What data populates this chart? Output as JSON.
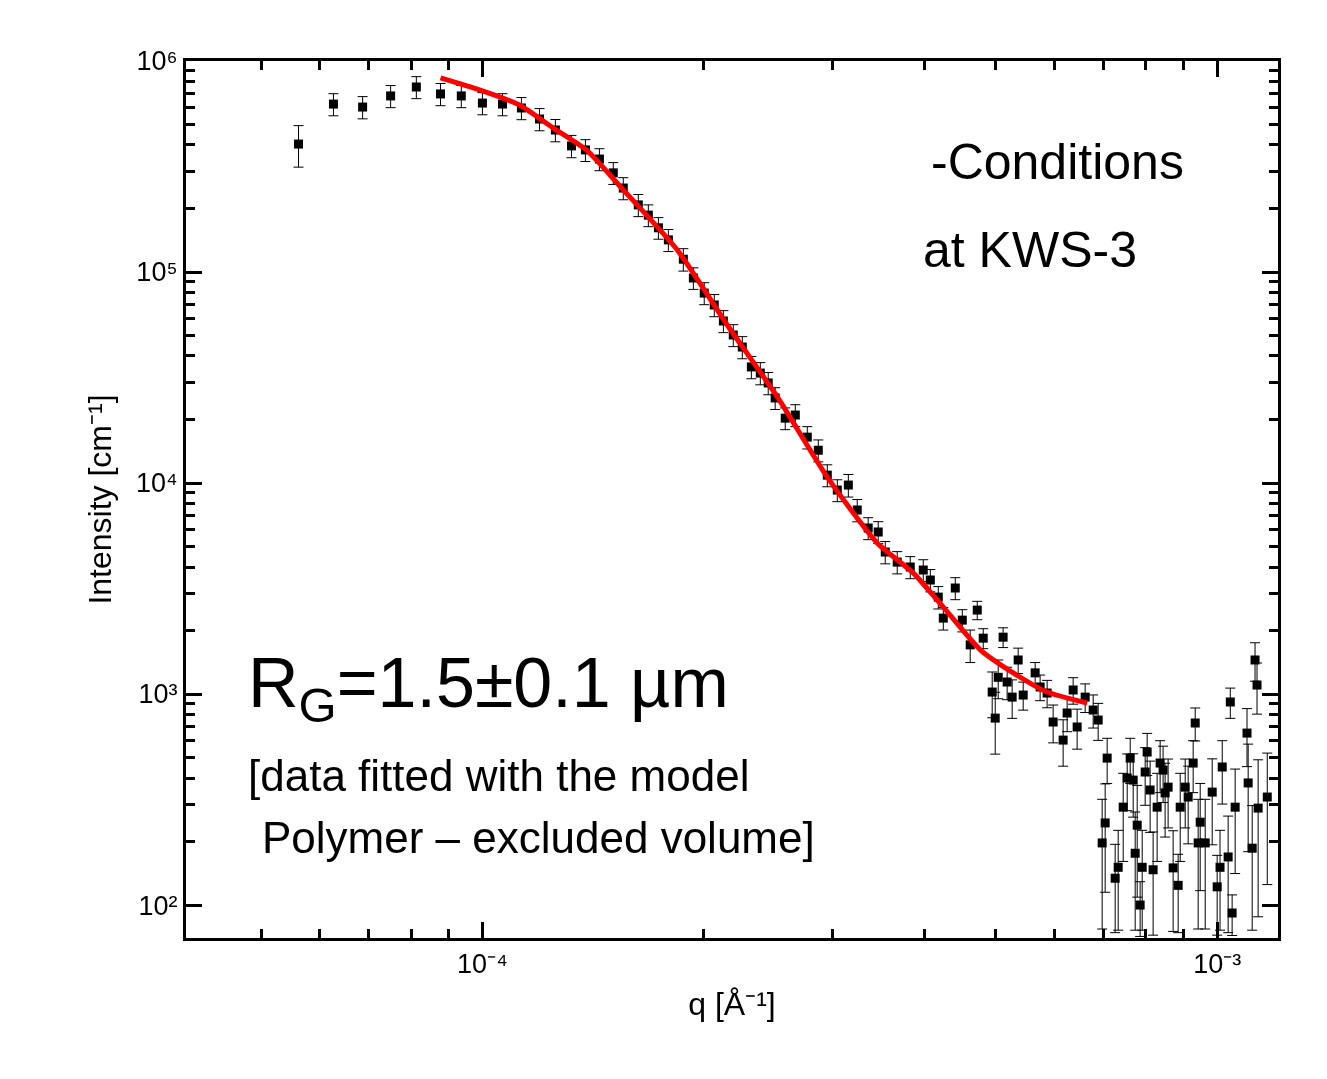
{
  "chart_data": {
    "type": "scatter",
    "xlabel": "q [Å⁻¹]",
    "ylabel": "Intensity [cm⁻¹]",
    "log": "xy",
    "marker": "square",
    "xlim": [
      3.95e-05,
      0.00121
    ],
    "ylim": [
      69.8,
      1000000
    ],
    "xticks": [
      {
        "value": 5e-05,
        "label": null
      },
      {
        "value": 6e-05,
        "label": null
      },
      {
        "value": 7e-05,
        "label": null
      },
      {
        "value": 8e-05,
        "label": null
      },
      {
        "value": 9e-05,
        "label": null
      },
      {
        "value": 0.0001,
        "label": "10⁻⁴"
      },
      {
        "value": 0.0002,
        "label": null
      },
      {
        "value": 0.0003,
        "label": null
      },
      {
        "value": 0.0004,
        "label": null
      },
      {
        "value": 0.0005,
        "label": null
      },
      {
        "value": 0.0006,
        "label": null
      },
      {
        "value": 0.0007,
        "label": null
      },
      {
        "value": 0.0008,
        "label": null
      },
      {
        "value": 0.0009,
        "label": null
      },
      {
        "value": 0.001,
        "label": "10⁻³"
      }
    ],
    "yticks": [
      {
        "value": 100,
        "label": "10²"
      },
      {
        "value": 200,
        "label": null
      },
      {
        "value": 300,
        "label": null
      },
      {
        "value": 400,
        "label": null
      },
      {
        "value": 500,
        "label": null
      },
      {
        "value": 600,
        "label": null
      },
      {
        "value": 700,
        "label": null
      },
      {
        "value": 800,
        "label": null
      },
      {
        "value": 900,
        "label": null
      },
      {
        "value": 1000,
        "label": "10³"
      },
      {
        "value": 2000,
        "label": null
      },
      {
        "value": 3000,
        "label": null
      },
      {
        "value": 4000,
        "label": null
      },
      {
        "value": 5000,
        "label": null
      },
      {
        "value": 6000,
        "label": null
      },
      {
        "value": 7000,
        "label": null
      },
      {
        "value": 8000,
        "label": null
      },
      {
        "value": 9000,
        "label": null
      },
      {
        "value": 10000,
        "label": "10⁴"
      },
      {
        "value": 20000,
        "label": null
      },
      {
        "value": 30000,
        "label": null
      },
      {
        "value": 40000,
        "label": null
      },
      {
        "value": 50000,
        "label": null
      },
      {
        "value": 60000,
        "label": null
      },
      {
        "value": 70000,
        "label": null
      },
      {
        "value": 80000,
        "label": null
      },
      {
        "value": 90000,
        "label": null
      },
      {
        "value": 100000,
        "label": "10⁵"
      },
      {
        "value": 200000,
        "label": null
      },
      {
        "value": 300000,
        "label": null
      },
      {
        "value": 400000,
        "label": null
      },
      {
        "value": 500000,
        "label": null
      },
      {
        "value": 600000,
        "label": null
      },
      {
        "value": 700000,
        "label": null
      },
      {
        "value": 800000,
        "label": null
      },
      {
        "value": 900000,
        "label": null
      },
      {
        "value": 1000000,
        "label": "10⁶"
      }
    ],
    "annotations": [
      "-Conditions",
      "at KWS-3",
      "R$_{G}$=1.5±0.1 µm",
      "[data fitted with the model",
      "Polymer – excluded volume]"
    ],
    "series": [
      {
        "color": "#000000",
        "x": [
          5.62e-05,
          6.27e-05,
          6.87e-05,
          7.5e-05,
          8.13e-05,
          8.77e-05,
          9.36e-05,
          0.0001,
          0.0001065,
          0.000113,
          0.0001196,
          0.0001257,
          0.0001322,
          0.0001381,
          0.0001443,
          0.0001507,
          0.0001555,
          0.000163,
          0.0001682,
          0.0001736,
          0.0001791,
          0.0001877,
          0.0001937,
          0.0002004,
          0.0002068,
          0.0002128,
          0.0002195,
          0.0002258,
          0.0002323,
          0.0002389,
          0.0002449,
          0.0002503,
          0.0002583,
          0.0002666,
          0.0002768,
          0.0002865,
          0.0002947,
          0.0003041,
          0.0003148,
          0.0003237,
          0.000335,
          0.0003457,
          0.0003534,
          0.0003669,
          0.0003822,
          0.0003981,
          0.000407,
          0.0004173,
          0.0004239,
          0.0004401,
          0.0004499,
          0.0004715,
          0.0004612,
          0.0004804,
          0.0005113,
          0.0005035,
          0.0004941,
          0.0004988,
          0.0005178,
          0.000526,
          0.000536,
          0.0005445,
          0.0005653,
          0.0005742,
          0.0005869,
          0.0005981,
          0.0006171,
          0.0006249,
          0.0006368,
          0.0006448,
          0.0006612,
          0.000678,
          0.0006887,
          0.0007084,
          0.0006974,
          0.000704,
          0.0007264,
          0.0007333,
          0.0007449,
          0.0007543,
          0.0007614,
          0.0007686,
          0.0007734,
          0.0007783,
          0.0007855,
          0.0007906,
          0.000803,
          0.000798,
          0.0008105,
          0.0008181,
          0.0008285,
          0.0008363,
          0.0008441,
          0.0008495,
          0.0008575,
          0.0008711,
          0.0008849,
          0.0008906,
          0.0009047,
          0.0009131,
          0.0009275,
          0.0009335,
          0.0009422,
          0.0009482,
          0.0009632,
          0.0009845,
          0.001,
          0.001009,
          0.001016,
          0.001035,
          0.001042,
          0.001048,
          0.001058,
          0.001098,
          0.001102,
          0.001116,
          0.001126,
          0.001133,
          0.001137,
          0.00117
        ],
        "values": [
          404000,
          625000,
          605000,
          683000,
          753000,
          698000,
          683000,
          632000,
          625000,
          599000,
          531000,
          471000,
          396000,
          379000,
          343000,
          295000,
          250000,
          208000,
          186000,
          162000,
          142000,
          115000,
          93700,
          79500,
          69800,
          58600,
          50300,
          44100,
          35500,
          33200,
          29800,
          25300,
          20300,
          21000,
          16500,
          14300,
          10900,
          9260,
          9780,
          7450,
          6120,
          5860,
          4710,
          4220,
          4000,
          3870,
          3470,
          2880,
          2290,
          3180,
          2240,
          2500,
          1710,
          1840,
          1860,
          1200,
          1022,
          769,
          1140,
          967,
          1450,
          989,
          1260,
          1080,
          1011,
          737,
          605,
          813,
          1045,
          698,
          967,
          840,
          753,
          497,
          197,
          245,
          134,
          151,
          291,
          400,
          497,
          391,
          176,
          239,
          100,
          151,
          531,
          427,
          351,
          147,
          291,
          471,
          436,
          340,
          362,
          150,
          124,
          291,
          362,
          325,
          471,
          729,
          197,
          247,
          197,
          343,
          122,
          151,
          451,
          169,
          917,
          91.7,
          291,
          653,
          379,
          186,
          1450,
          1103,
          288,
          325
        ],
        "errors": [
          90000,
          75000,
          73000,
          82000,
          90000,
          84000,
          82000,
          76000,
          75000,
          72000,
          64000,
          57000,
          48000,
          45000,
          41000,
          35000,
          30000,
          25000,
          22000,
          19000,
          17000,
          14000,
          11000,
          9500,
          8400,
          7000,
          6000,
          5300,
          4300,
          4000,
          3600,
          3000,
          2400,
          2500,
          2000,
          1700,
          1300,
          1100,
          1200,
          900,
          730,
          700,
          570,
          510,
          480,
          460,
          420,
          350,
          280,
          380,
          270,
          250,
          300,
          200,
          200,
          250,
          250,
          250,
          200,
          200,
          200,
          150,
          150,
          150,
          150,
          150,
          150,
          150,
          150,
          150,
          150,
          150,
          150,
          120,
          120,
          130,
          60,
          75,
          130,
          120,
          120,
          130,
          100,
          130,
          29,
          75,
          120,
          130,
          130,
          75,
          130,
          130,
          130,
          130,
          130,
          75,
          50,
          130,
          130,
          130,
          130,
          130,
          120,
          130,
          120,
          150,
          50,
          75,
          150,
          95,
          150,
          20,
          150,
          200,
          200,
          110,
          300,
          300,
          200,
          200
        ]
      },
      {
        "type": "line",
        "color": "#ff0000",
        "marker": "none",
        "x": [
          8.77e-05,
          9.91e-05,
          0.0001123,
          0.0001249,
          0.0001385,
          0.0001555,
          0.0001842,
          0.0002154,
          0.000252,
          0.0002947,
          0.0003446,
          0.0003857,
          0.0004293,
          0.000476,
          0.0005277,
          0.0005869,
          0.0006654
        ],
        "values": [
          831000,
          729000,
          619000,
          481000,
          379000,
          245000,
          127100,
          56100,
          25600,
          10660,
          5200,
          3750,
          2450,
          1620,
          1260,
          1022,
          907
        ]
      }
    ]
  }
}
